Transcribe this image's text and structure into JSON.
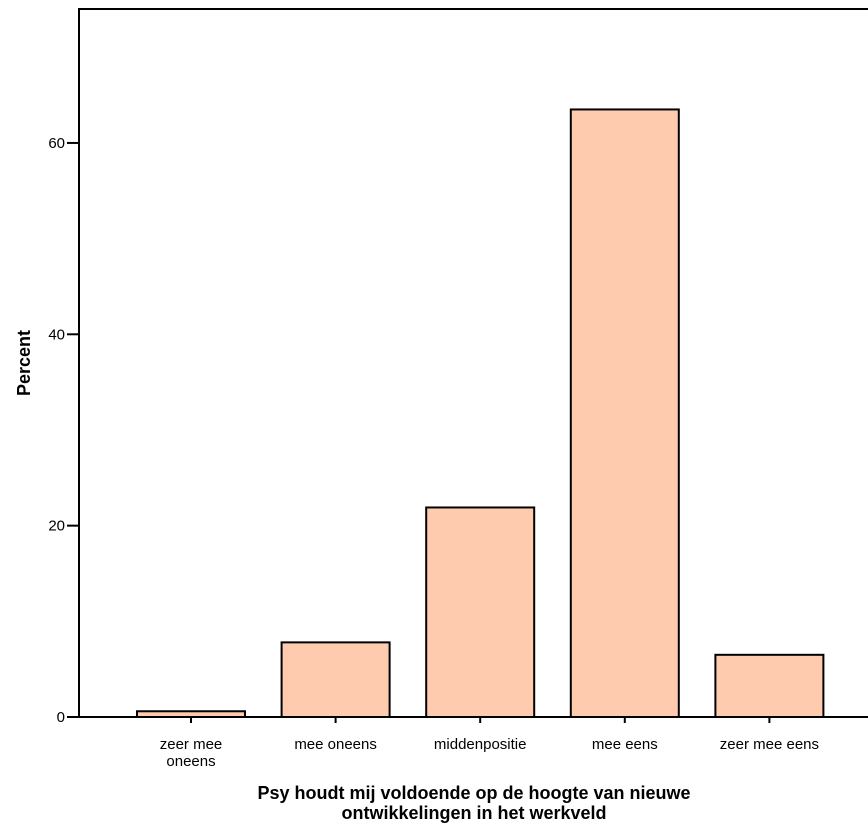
{
  "chart_data": {
    "type": "bar",
    "categories": [
      [
        "zeer mee",
        "oneens"
      ],
      [
        "mee oneens"
      ],
      [
        "middenpositie"
      ],
      [
        "mee eens"
      ],
      [
        "zeer mee eens"
      ]
    ],
    "values": [
      0.6,
      7.8,
      21.9,
      63.5,
      6.5
    ],
    "xlabel": [
      "Psy houdt mij voldoende op de hoogte van nieuwe",
      "ontwikkelingen in het werkveld"
    ],
    "ylabel": "Percent",
    "ylim": [
      0,
      74
    ],
    "yticks": [
      0,
      20,
      40,
      60
    ],
    "grid": false,
    "bar_fill": "#FFCBAE",
    "bar_stroke": "#000000"
  }
}
